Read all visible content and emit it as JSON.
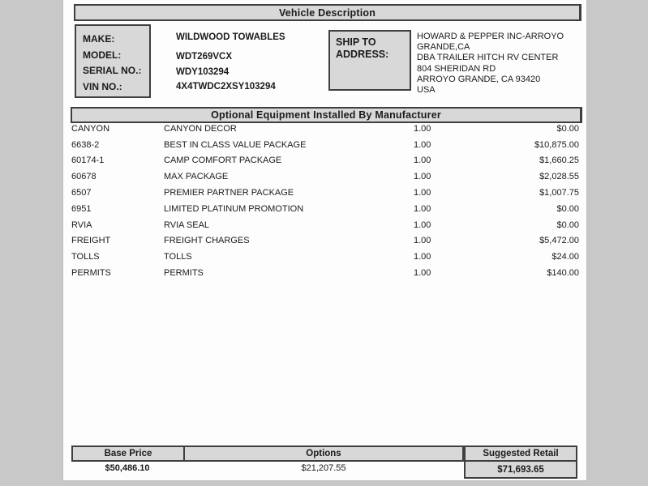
{
  "header": {
    "title": "Vehicle Description"
  },
  "vehicle": {
    "labels": [
      "MAKE:",
      "MODEL:",
      "SERIAL NO.:",
      "VIN NO.:"
    ],
    "make": "WILDWOOD TOWABLES",
    "model": "WDT269VCX",
    "serial_no": "WDY103294",
    "vin_no": "4X4TWDC2XSY103294"
  },
  "ship_to": {
    "label_line1": "SHIP TO",
    "label_line2": "ADDRESS:",
    "address_lines": [
      "HOWARD & PEPPER INC-ARROYO",
      "GRANDE,CA",
      "DBA TRAILER HITCH RV CENTER",
      "804 SHERIDAN RD",
      "ARROYO GRANDE, CA 93420",
      "USA"
    ]
  },
  "optional_equipment": {
    "title": "Optional Equipment Installed By Manufacturer",
    "rows": [
      {
        "code": "CANYON",
        "description": "CANYON DECOR",
        "qty": "1.00",
        "price": "$0.00"
      },
      {
        "code": "6638-2",
        "description": "BEST IN CLASS VALUE PACKAGE",
        "qty": "1.00",
        "price": "$10,875.00"
      },
      {
        "code": "60174-1",
        "description": "CAMP COMFORT PACKAGE",
        "qty": "1.00",
        "price": "$1,660.25"
      },
      {
        "code": "60678",
        "description": "MAX PACKAGE",
        "qty": "1.00",
        "price": "$2,028.55"
      },
      {
        "code": "6507",
        "description": "PREMIER PARTNER PACKAGE",
        "qty": "1.00",
        "price": "$1,007.75"
      },
      {
        "code": "6951",
        "description": "LIMITED PLATINUM PROMOTION",
        "qty": "1.00",
        "price": "$0.00"
      },
      {
        "code": "RVIA",
        "description": "RVIA SEAL",
        "qty": "1.00",
        "price": "$0.00"
      },
      {
        "code": "FREIGHT",
        "description": "FREIGHT CHARGES",
        "qty": "1.00",
        "price": "$5,472.00"
      },
      {
        "code": "TOLLS",
        "description": "TOLLS",
        "qty": "1.00",
        "price": "$24.00"
      },
      {
        "code": "PERMITS",
        "description": "PERMITS",
        "qty": "1.00",
        "price": "$140.00"
      }
    ]
  },
  "totals": {
    "base_price_label": "Base Price",
    "base_price_value": "$50,486.10",
    "options_label": "Options",
    "options_value": "$21,207.55",
    "suggested_retail_label": "Suggested Retail",
    "suggested_retail_value": "$71,693.65"
  },
  "colors": {
    "page_background": "#fdfdfd",
    "outer_background": "#c8c8c8",
    "bar_fill": "#d8d8d8",
    "border": "#3f3f3f",
    "text": "#1b1b1b"
  }
}
